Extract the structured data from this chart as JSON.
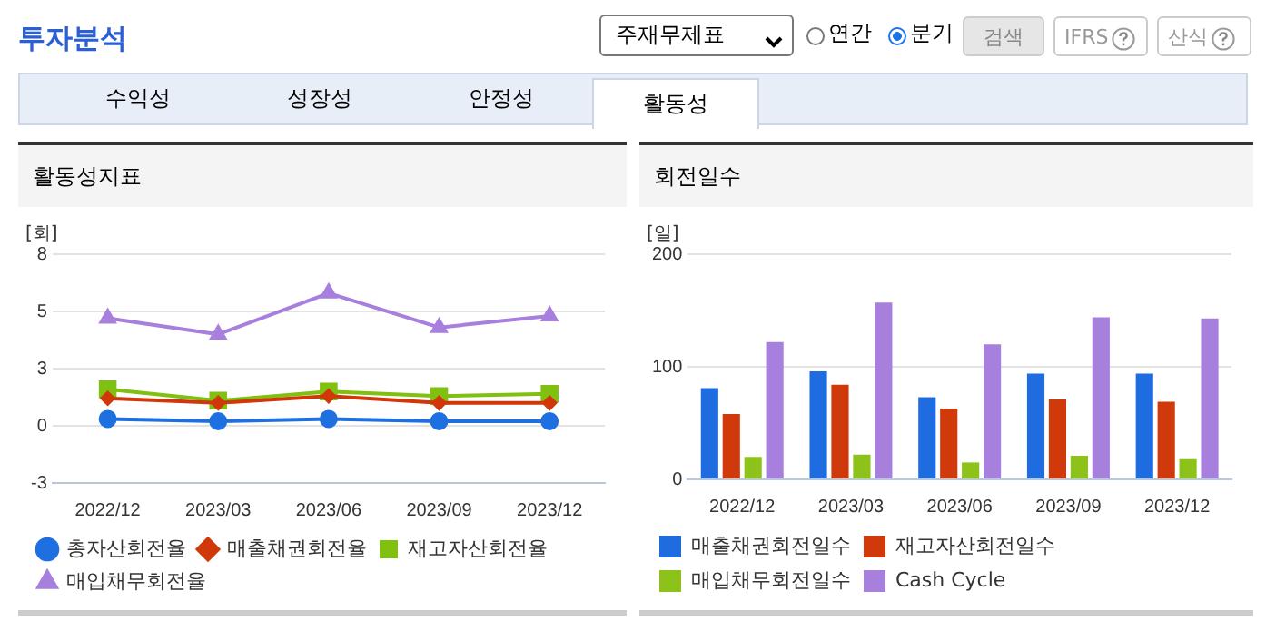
{
  "chart_data": [
    {
      "type": "other",
      "title": "투자분석",
      "annotations": [
        "주재무제표",
        "연간",
        "분기",
        "검색",
        "IFRS",
        "산식",
        "수익성",
        "성장성",
        "안정성",
        "활동성"
      ]
    },
    {
      "type": "line",
      "title": "활동성지표",
      "ylabel": "[회]",
      "categories": [
        "2022/12",
        "2023/03",
        "2023/06",
        "2023/09",
        "2023/12"
      ],
      "series": [
        {
          "name": "총자산회전율",
          "color": "#1e6fe0",
          "marker": "circle",
          "values": [
            0.3,
            0.2,
            0.3,
            0.2,
            0.2
          ]
        },
        {
          "name": "매출채권회전율",
          "color": "#d0380a",
          "marker": "diamond",
          "values": [
            1.2,
            1.0,
            1.3,
            1.0,
            1.0
          ]
        },
        {
          "name": "재고자산회전율",
          "color": "#80c010",
          "marker": "square",
          "values": [
            1.6,
            1.1,
            1.5,
            1.3,
            1.4
          ]
        },
        {
          "name": "매입채무회전율",
          "color": "#a77fdd",
          "marker": "triangle",
          "values": [
            4.7,
            4.0,
            5.8,
            4.3,
            4.8
          ]
        }
      ],
      "ylim": [
        -2.5,
        7.5
      ],
      "yticks": [
        {
          "value": -2.5,
          "label": "-3"
        },
        0,
        {
          "value": 2.5,
          "label": "3"
        },
        5,
        {
          "value": 7.5,
          "label": "8"
        }
      ],
      "grid": "y",
      "legend": "bottom",
      "line_style": "solid"
    },
    {
      "type": "bar",
      "title": "회전일수",
      "ylabel": "[일]",
      "categories": [
        "2022/12",
        "2023/03",
        "2023/06",
        "2023/09",
        "2023/12"
      ],
      "series": [
        {
          "name": "매출채권회전일수",
          "color": "#1f6ce0",
          "values": [
            81,
            96,
            73,
            94,
            94
          ]
        },
        {
          "name": "재고자산회전일수",
          "color": "#d03a0a",
          "values": [
            58,
            84,
            63,
            71,
            69
          ]
        },
        {
          "name": "매입채무회전일수",
          "color": "#8cc21a",
          "values": [
            20,
            22,
            15,
            21,
            18
          ]
        },
        {
          "name": "Cash Cycle",
          "color": "#a77fdd",
          "values": [
            122,
            157,
            120,
            144,
            143
          ]
        }
      ],
      "ylim": [
        0,
        200
      ],
      "yticks": [
        0,
        100,
        200
      ],
      "grid": "y",
      "legend": "bottom"
    }
  ]
}
